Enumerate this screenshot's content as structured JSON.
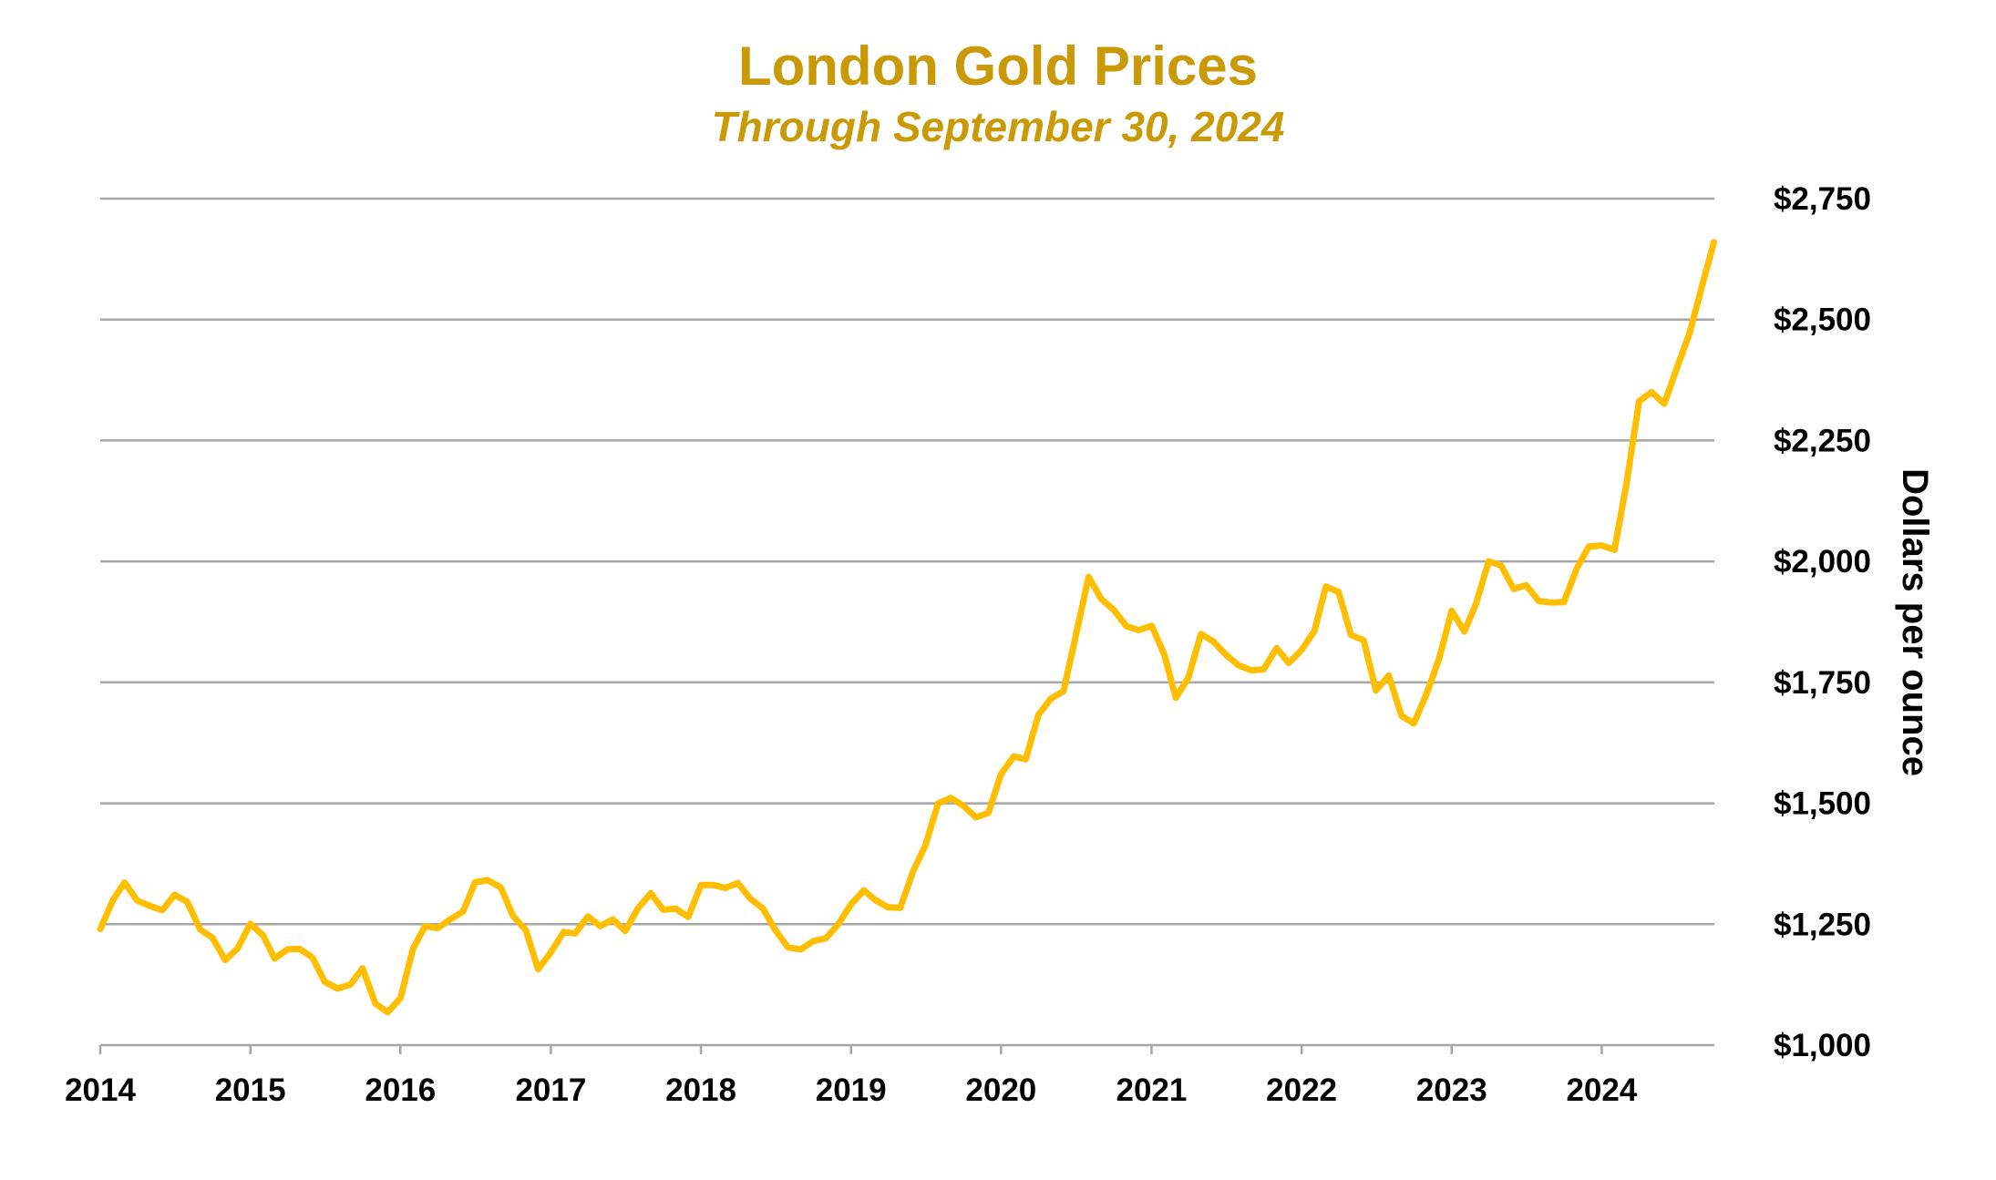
{
  "chart_data": {
    "type": "line",
    "title": "London Gold Prices",
    "subtitle": "Through September 30, 2024",
    "xlabel": "",
    "ylabel": "Dollars per ounce",
    "ylim": [
      1000,
      2750
    ],
    "yticks": [
      1000,
      1250,
      1500,
      1750,
      2000,
      2250,
      2500,
      2750
    ],
    "ytick_labels": [
      "$1,000",
      "$1,250",
      "$1,500",
      "$1,750",
      "$2,000",
      "$2,250",
      "$2,500",
      "$2,750"
    ],
    "xlim": [
      "2014-01-01",
      "2024-10-01"
    ],
    "xtick_labels": [
      "2014",
      "2015",
      "2016",
      "2017",
      "2018",
      "2019",
      "2020",
      "2021",
      "2022",
      "2023",
      "2024"
    ],
    "grid": "horizontal",
    "y_axis_position": "right",
    "colors": {
      "title": "#C99A06",
      "line": "#FFBF00",
      "grid": "#A6A6A6"
    },
    "series": [
      {
        "x": [
          "2014-01-01",
          "2014-02-01",
          "2014-03-01",
          "2014-04-01",
          "2014-05-01",
          "2014-06-01",
          "2014-07-01",
          "2014-08-01",
          "2014-09-01",
          "2014-10-01",
          "2014-11-01",
          "2014-12-01",
          "2015-01-01",
          "2015-02-01",
          "2015-03-01",
          "2015-04-01",
          "2015-05-01",
          "2015-06-01",
          "2015-07-01",
          "2015-08-01",
          "2015-09-01",
          "2015-10-01",
          "2015-11-01",
          "2015-12-01",
          "2016-01-01",
          "2016-02-01",
          "2016-03-01",
          "2016-04-01",
          "2016-05-01",
          "2016-06-01",
          "2016-07-01",
          "2016-08-01",
          "2016-09-01",
          "2016-10-01",
          "2016-11-01",
          "2016-12-01",
          "2017-01-01",
          "2017-02-01",
          "2017-03-01",
          "2017-04-01",
          "2017-05-01",
          "2017-06-01",
          "2017-07-01",
          "2017-08-01",
          "2017-09-01",
          "2017-10-01",
          "2017-11-01",
          "2017-12-01",
          "2018-01-01",
          "2018-02-01",
          "2018-03-01",
          "2018-04-01",
          "2018-05-01",
          "2018-06-01",
          "2018-07-01",
          "2018-08-01",
          "2018-09-01",
          "2018-10-01",
          "2018-11-01",
          "2018-12-01",
          "2019-01-01",
          "2019-02-01",
          "2019-03-01",
          "2019-04-01",
          "2019-05-01",
          "2019-06-01",
          "2019-07-01",
          "2019-08-01",
          "2019-09-01",
          "2019-10-01",
          "2019-11-01",
          "2019-12-01",
          "2020-01-01",
          "2020-02-01",
          "2020-03-01",
          "2020-04-01",
          "2020-05-01",
          "2020-06-01",
          "2020-07-01",
          "2020-08-01",
          "2020-09-01",
          "2020-10-01",
          "2020-11-01",
          "2020-12-01",
          "2021-01-01",
          "2021-02-01",
          "2021-03-01",
          "2021-04-01",
          "2021-05-01",
          "2021-06-01",
          "2021-07-01",
          "2021-08-01",
          "2021-09-01",
          "2021-10-01",
          "2021-11-01",
          "2021-12-01",
          "2022-01-01",
          "2022-02-01",
          "2022-03-01",
          "2022-04-01",
          "2022-05-01",
          "2022-06-01",
          "2022-07-01",
          "2022-08-01",
          "2022-09-01",
          "2022-10-01",
          "2022-11-01",
          "2022-12-01",
          "2023-01-01",
          "2023-02-01",
          "2023-03-01",
          "2023-04-01",
          "2023-05-01",
          "2023-06-01",
          "2023-07-01",
          "2023-08-01",
          "2023-09-01",
          "2023-10-01",
          "2023-11-01",
          "2023-12-01",
          "2024-01-01",
          "2024-02-01",
          "2024-03-01",
          "2024-04-01",
          "2024-05-01",
          "2024-06-01",
          "2024-07-01",
          "2024-08-01",
          "2024-09-01",
          "2024-09-30"
        ],
        "values": [
          1240,
          1300,
          1336,
          1299,
          1288,
          1279,
          1311,
          1296,
          1239,
          1222,
          1176,
          1200,
          1251,
          1227,
          1179,
          1198,
          1199,
          1181,
          1131,
          1117,
          1125,
          1159,
          1086,
          1068,
          1097,
          1200,
          1246,
          1242,
          1260,
          1276,
          1337,
          1341,
          1326,
          1267,
          1238,
          1157,
          1192,
          1234,
          1231,
          1266,
          1246,
          1260,
          1236,
          1283,
          1314,
          1280,
          1282,
          1265,
          1331,
          1331,
          1325,
          1335,
          1303,
          1282,
          1238,
          1202,
          1198,
          1215,
          1221,
          1250,
          1291,
          1320,
          1300,
          1285,
          1284,
          1359,
          1413,
          1500,
          1511,
          1495,
          1471,
          1480,
          1560,
          1597,
          1591,
          1683,
          1716,
          1732,
          1847,
          1968,
          1922,
          1900,
          1866,
          1858,
          1867,
          1808,
          1718,
          1760,
          1850,
          1834,
          1807,
          1785,
          1775,
          1777,
          1821,
          1790,
          1817,
          1856,
          1948,
          1937,
          1848,
          1837,
          1733,
          1764,
          1681,
          1665,
          1726,
          1798,
          1898,
          1855,
          1912,
          2000,
          1992,
          1943,
          1951,
          1918,
          1915,
          1916,
          1985,
          2031,
          2033,
          2024,
          2160,
          2331,
          2350,
          2326,
          2398,
          2470,
          2570,
          2660
        ]
      }
    ]
  }
}
